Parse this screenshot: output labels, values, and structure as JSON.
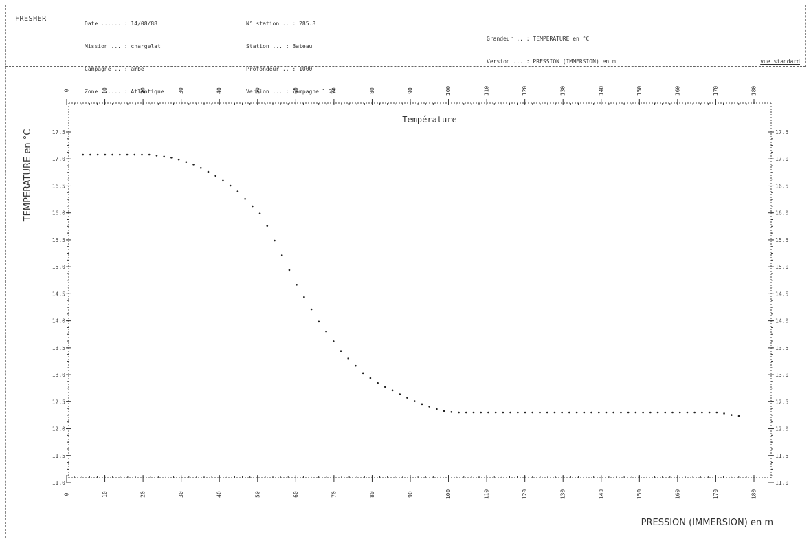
{
  "header": {
    "org": "FRESHER",
    "block1": [
      "Date ...... : 14/08/88",
      "Mission ... : chargelat",
      "Campagne .. : ambe",
      "Zone ...... : Atlantique"
    ],
    "block2": [
      "N° station .. : 285.8",
      "Station ... : Bateau",
      "Profondeur .. : 1000",
      "Version ... : Campagne 1 27"
    ],
    "block3": [
      "Grandeur .. : TEMPERATURE en °C",
      "Version ... : PRESSION (IMMERSION) en m"
    ],
    "ref": "vue standard"
  },
  "chart_data": {
    "type": "scatter",
    "title": "Température",
    "ylabel": "TEMPERATURE en °C",
    "xlabel": "PRESSION (IMMERSION) en m",
    "ylim": [
      10.0,
      17.5
    ],
    "xlim": [
      0,
      200
    ],
    "y_ticks_left": [
      "17.5",
      "17.0",
      "16.5",
      "16.0",
      "15.5",
      "15.0",
      "14.5",
      "14.0",
      "13.5",
      "13.0",
      "12.5",
      "12.0",
      "11.5",
      "11.0"
    ],
    "y_ticks_right": [
      "17.5",
      "17.0",
      "16.5",
      "16.0",
      "15.5",
      "15.0",
      "14.5",
      "14.0",
      "13.5",
      "13.0",
      "12.5",
      "12.0",
      "11.5",
      "11.0"
    ],
    "x_ticks_top": [
      "0",
      "10",
      "20",
      "30",
      "40",
      "50",
      "60",
      "70",
      "80",
      "90",
      "100",
      "110",
      "120",
      "130",
      "140",
      "150",
      "160",
      "170",
      "180"
    ],
    "x_ticks_bottom": [
      "0",
      "10",
      "20",
      "30",
      "40",
      "50",
      "60",
      "70",
      "80",
      "90",
      "100",
      "110",
      "120",
      "130",
      "140",
      "150",
      "160",
      "170",
      "180"
    ],
    "x": [
      2,
      4,
      6,
      8,
      10,
      12,
      14,
      16,
      18,
      20,
      22,
      24,
      26,
      28,
      30,
      32,
      34,
      36,
      38,
      40,
      42,
      44,
      46,
      48,
      50,
      52,
      54,
      56,
      58,
      60,
      62,
      64,
      66,
      68,
      70,
      72,
      74,
      76,
      78,
      80,
      82,
      84,
      86,
      88,
      90,
      92,
      94,
      96,
      98,
      100,
      102,
      104,
      106,
      108,
      110,
      112,
      114,
      116,
      118,
      120,
      122,
      124,
      126,
      128,
      130,
      132,
      134,
      136,
      138,
      140,
      142,
      144,
      146,
      148,
      150,
      152,
      154,
      156,
      158,
      160,
      162,
      164,
      166,
      168,
      170,
      172,
      174,
      176,
      178,
      180
    ],
    "y": [
      17.0,
      17.0,
      17.0,
      17.0,
      17.0,
      17.0,
      17.0,
      17.0,
      17.0,
      17.0,
      16.98,
      16.96,
      16.94,
      16.9,
      16.85,
      16.8,
      16.73,
      16.65,
      16.57,
      16.47,
      16.37,
      16.25,
      16.1,
      15.95,
      15.8,
      15.55,
      15.25,
      14.95,
      14.65,
      14.35,
      14.1,
      13.85,
      13.6,
      13.4,
      13.2,
      13.0,
      12.85,
      12.7,
      12.55,
      12.45,
      12.35,
      12.27,
      12.2,
      12.12,
      12.05,
      11.98,
      11.92,
      11.87,
      11.82,
      11.78,
      11.76,
      11.75,
      11.75,
      11.75,
      11.75,
      11.75,
      11.75,
      11.75,
      11.75,
      11.75,
      11.75,
      11.75,
      11.75,
      11.75,
      11.75,
      11.75,
      11.75,
      11.75,
      11.75,
      11.75,
      11.75,
      11.75,
      11.75,
      11.75,
      11.75,
      11.75,
      11.75,
      11.75,
      11.75,
      11.75,
      11.75,
      11.75,
      11.75,
      11.75,
      11.75,
      11.75,
      11.75,
      11.73,
      11.7,
      11.68
    ]
  }
}
